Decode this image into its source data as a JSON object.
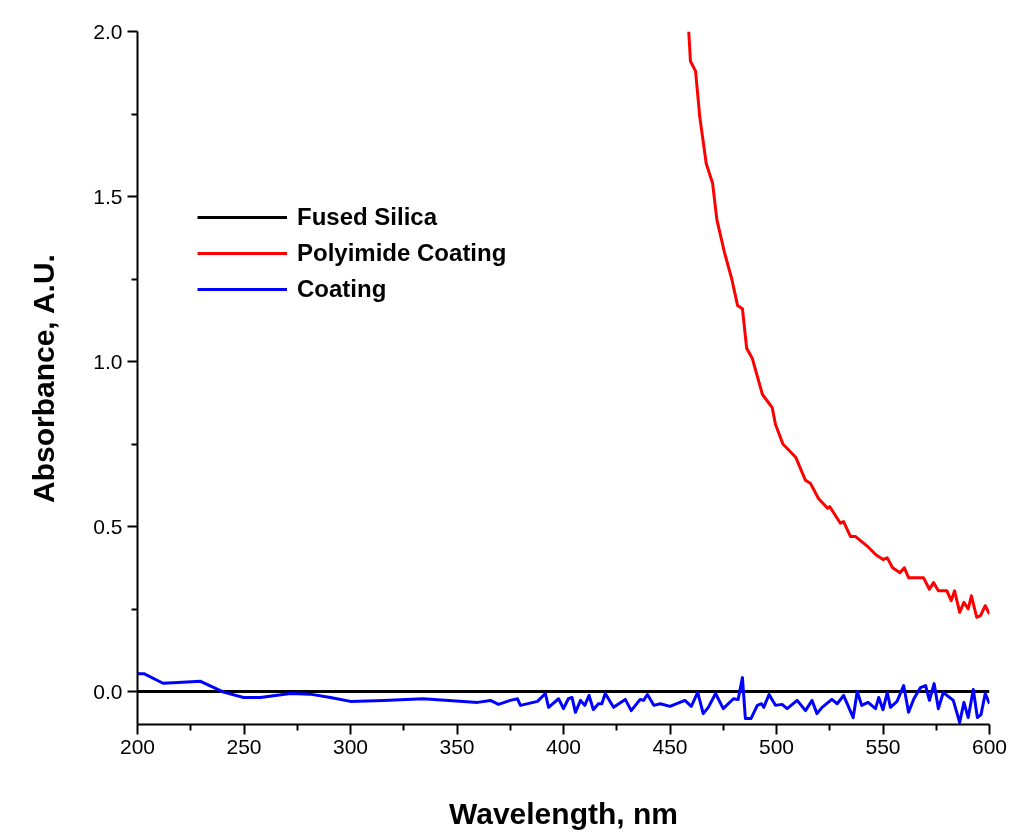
{
  "chart_data": {
    "type": "line",
    "xlabel": "Wavelength, nm",
    "ylabel": "Absorbance, A.U.",
    "xlim": [
      200,
      600
    ],
    "ylim": [
      -0.1,
      2.0
    ],
    "xticks": [
      200,
      250,
      300,
      350,
      400,
      450,
      500,
      550,
      600
    ],
    "yticks": [
      {
        "value": 0,
        "label": "0.0"
      },
      {
        "value": 0.5,
        "label": "0.5"
      },
      {
        "value": 1,
        "label": "1.0"
      },
      {
        "value": 1.5,
        "label": "1.5"
      },
      {
        "value": 2,
        "label": "2.0"
      }
    ],
    "grid": false,
    "legend": "top left",
    "marker": "none",
    "line_style": "solid",
    "series": [
      {
        "name": "Fused Silica",
        "color": "#000000",
        "x": [
          200,
          300,
          400,
          500,
          600
        ],
        "values": [
          0,
          0,
          0,
          0,
          0
        ]
      },
      {
        "name": "Polyimide Coating",
        "color": "#ff0000",
        "x": [
          458.8,
          459.6,
          462,
          464,
          467,
          470,
          472,
          475.6,
          479,
          481.7,
          484,
          486,
          488.6,
          493.4,
          498,
          499.5,
          503,
          509,
          513.6,
          516,
          519.7,
          524,
          525,
          530,
          531.5,
          534.7,
          537,
          542.7,
          546.5,
          550,
          552,
          554.5,
          558,
          560,
          562,
          569,
          571.8,
          573.7,
          576,
          580,
          582,
          583.6,
          586,
          588,
          590,
          591.5,
          594,
          595.8,
          598,
          600
        ],
        "values": [
          2.0,
          1.91,
          1.88,
          1.74,
          1.6,
          1.54,
          1.43,
          1.33,
          1.25,
          1.17,
          1.16,
          1.04,
          1.01,
          0.9,
          0.86,
          0.81,
          0.75,
          0.71,
          0.64,
          0.63,
          0.585,
          0.555,
          0.56,
          0.51,
          0.515,
          0.47,
          0.47,
          0.44,
          0.415,
          0.4,
          0.405,
          0.375,
          0.36,
          0.375,
          0.345,
          0.345,
          0.31,
          0.33,
          0.305,
          0.305,
          0.275,
          0.305,
          0.24,
          0.27,
          0.25,
          0.29,
          0.225,
          0.23,
          0.26,
          0.235
        ]
      },
      {
        "name": "Coating",
        "color": "#0000ff",
        "x": [
          200,
          203,
          212,
          219,
          229.6,
          240.4,
          249.8,
          257.7,
          271.8,
          281,
          290.6,
          300,
          315.5,
          334,
          353,
          359.6,
          365.7,
          369.5,
          375,
          378.4,
          379.8,
          387.8,
          391.5,
          393,
          397.7,
          400,
          402.3,
          404,
          405.6,
          408,
          410,
          412,
          414,
          416.4,
          418,
          419.6,
          423.5,
          429,
          431.8,
          436,
          437.6,
          439.4,
          442.4,
          445.5,
          450,
          457,
          460,
          463,
          465.6,
          468,
          471.4,
          475,
          479.8,
          482,
          484,
          485.4,
          488,
          491,
          493,
          494,
          496.5,
          499.5,
          502.6,
          505,
          509.7,
          513.6,
          516.7,
          519,
          521.4,
          526,
          528.5,
          531.5,
          536,
          537.9,
          540,
          543,
          546.5,
          548,
          550,
          552,
          553.5,
          556.6,
          559.7,
          562,
          564.5,
          567.6,
          570,
          571.8,
          574,
          576,
          578.3,
          583,
          586,
          588,
          590,
          592.4,
          594.3,
          596,
          598,
          600
        ],
        "values": [
          0.054,
          0.054,
          0.025,
          0.027,
          0.031,
          -0.002,
          -0.018,
          -0.018,
          -0.006,
          -0.008,
          -0.018,
          -0.03,
          -0.027,
          -0.022,
          -0.03,
          -0.033,
          -0.027,
          -0.039,
          -0.027,
          -0.022,
          -0.042,
          -0.03,
          -0.006,
          -0.048,
          -0.022,
          -0.052,
          -0.022,
          -0.018,
          -0.063,
          -0.027,
          -0.042,
          -0.012,
          -0.055,
          -0.037,
          -0.037,
          -0.006,
          -0.048,
          -0.024,
          -0.058,
          -0.024,
          -0.027,
          -0.009,
          -0.042,
          -0.037,
          -0.045,
          -0.027,
          -0.045,
          -0.003,
          -0.067,
          -0.048,
          -0.006,
          -0.052,
          -0.022,
          -0.024,
          0.042,
          -0.082,
          -0.082,
          -0.042,
          -0.037,
          -0.048,
          -0.009,
          -0.042,
          -0.039,
          -0.052,
          -0.027,
          -0.058,
          -0.027,
          -0.067,
          -0.048,
          -0.024,
          -0.037,
          -0.012,
          -0.079,
          0.0,
          -0.042,
          -0.033,
          -0.052,
          -0.018,
          -0.055,
          -0.003,
          -0.048,
          -0.03,
          0.018,
          -0.063,
          -0.022,
          0.012,
          0.018,
          -0.027,
          0.024,
          -0.052,
          -0.003,
          -0.027,
          -0.094,
          -0.033,
          -0.079,
          0.006,
          -0.079,
          -0.07,
          -0.006,
          -0.037
        ]
      }
    ]
  }
}
